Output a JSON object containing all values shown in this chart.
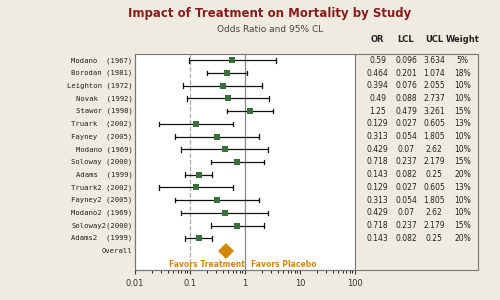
{
  "title": "Impact of Treatment on Mortality by Study",
  "subtitle": "Odds Ratio and 95% CL",
  "background_color": "#f0ebe0",
  "plot_bg_color": "#ffffff",
  "title_color": "#8B1A1A",
  "subtitle_color": "#444444",
  "studies": [
    {
      "label": "Modano  (1967)",
      "or": 0.59,
      "lcl": 0.096,
      "ucl": 3.634,
      "weight": "5%"
    },
    {
      "label": "Borodan (1981)",
      "or": 0.464,
      "lcl": 0.201,
      "ucl": 1.074,
      "weight": "18%"
    },
    {
      "label": "Leighton (1972)",
      "or": 0.394,
      "lcl": 0.076,
      "ucl": 2.055,
      "weight": "10%"
    },
    {
      "label": "Novak  (1992)",
      "or": 0.49,
      "lcl": 0.088,
      "ucl": 2.737,
      "weight": "10%"
    },
    {
      "label": "Stawor (1998)",
      "or": 1.25,
      "lcl": 0.479,
      "ucl": 3.261,
      "weight": "15%"
    },
    {
      "label": "Truark  (2002)",
      "or": 0.129,
      "lcl": 0.027,
      "ucl": 0.605,
      "weight": "13%"
    },
    {
      "label": "Fayney  (2005)",
      "or": 0.313,
      "lcl": 0.054,
      "ucl": 1.805,
      "weight": "10%"
    },
    {
      "label": "Modano (1969)",
      "or": 0.429,
      "lcl": 0.07,
      "ucl": 2.62,
      "weight": "10%"
    },
    {
      "label": "Soloway (2000)",
      "or": 0.718,
      "lcl": 0.237,
      "ucl": 2.179,
      "weight": "15%"
    },
    {
      "label": "Adams  (1999)",
      "or": 0.143,
      "lcl": 0.082,
      "ucl": 0.25,
      "weight": "20%"
    },
    {
      "label": "Truark2 (2002)",
      "or": 0.129,
      "lcl": 0.027,
      "ucl": 0.605,
      "weight": "13%"
    },
    {
      "label": "Fayney2 (2005)",
      "or": 0.313,
      "lcl": 0.054,
      "ucl": 1.805,
      "weight": "10%"
    },
    {
      "label": "Modano2 (1969)",
      "or": 0.429,
      "lcl": 0.07,
      "ucl": 2.62,
      "weight": "10%"
    },
    {
      "label": "Soloway2(2000)",
      "or": 0.718,
      "lcl": 0.237,
      "ucl": 2.179,
      "weight": "15%"
    },
    {
      "label": "Adams2  (1999)",
      "or": 0.143,
      "lcl": 0.082,
      "ucl": 0.25,
      "weight": "20%"
    },
    {
      "label": "Overall",
      "or": 0.45,
      "lcl": null,
      "ucl": null,
      "weight": null,
      "is_overall": true
    }
  ],
  "col_headers": [
    "OR",
    "LCL",
    "UCL",
    "Weight"
  ],
  "col_header_color": "#222222",
  "marker_color": "#3a6e3a",
  "overall_color": "#d4880a",
  "ci_color": "#111111",
  "vline_dashed_color": "#aaaaaa",
  "vline_solid_color": "#888888",
  "axis_border_color": "#555555",
  "label_color": "#222222",
  "favor_treatment": "Favors Treatment",
  "favor_placebo": "Favors Placebo",
  "favor_color": "#d4880a",
  "xticks_log": [
    0.01,
    0.1,
    1,
    10,
    100
  ],
  "xtick_labels": [
    "0.01",
    "0.1",
    "1",
    "10",
    "100"
  ],
  "vline_dashed": 0.1,
  "vline_solid": 1.0
}
